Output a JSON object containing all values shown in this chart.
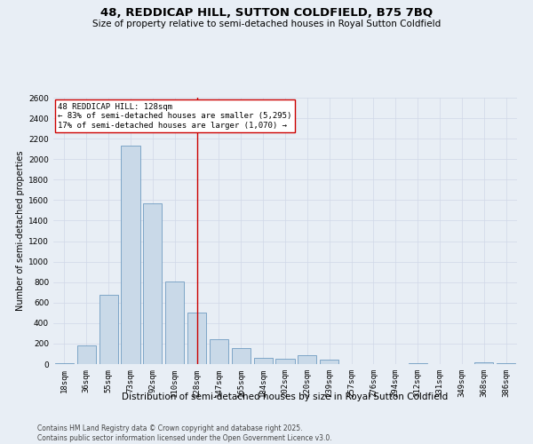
{
  "title": "48, REDDICAP HILL, SUTTON COLDFIELD, B75 7BQ",
  "subtitle": "Size of property relative to semi-detached houses in Royal Sutton Coldfield",
  "xlabel": "Distribution of semi-detached houses by size in Royal Sutton Coldfield",
  "ylabel": "Number of semi-detached properties",
  "categories": [
    "18sqm",
    "36sqm",
    "55sqm",
    "73sqm",
    "92sqm",
    "110sqm",
    "128sqm",
    "147sqm",
    "165sqm",
    "184sqm",
    "202sqm",
    "220sqm",
    "239sqm",
    "257sqm",
    "276sqm",
    "294sqm",
    "312sqm",
    "331sqm",
    "349sqm",
    "368sqm",
    "386sqm"
  ],
  "values": [
    5,
    185,
    675,
    2130,
    1565,
    810,
    500,
    240,
    160,
    65,
    50,
    90,
    40,
    0,
    0,
    0,
    5,
    0,
    0,
    20,
    5
  ],
  "bar_color": "#c9d9e8",
  "bar_edge_color": "#5b8db8",
  "vline_color": "#cc0000",
  "annotation_box_color": "#ffffff",
  "annotation_box_edge": "#cc0000",
  "pct_smaller": 83,
  "n_smaller": 5295,
  "pct_larger": 17,
  "n_larger": 1070,
  "grid_color": "#d0d8e8",
  "background_color": "#e8eef5",
  "ylim": [
    0,
    2600
  ],
  "yticks": [
    0,
    200,
    400,
    600,
    800,
    1000,
    1200,
    1400,
    1600,
    1800,
    2000,
    2200,
    2400,
    2600
  ],
  "footnote": "Contains HM Land Registry data © Crown copyright and database right 2025.\nContains public sector information licensed under the Open Government Licence v3.0.",
  "title_fontsize": 9.5,
  "subtitle_fontsize": 7.5,
  "xlabel_fontsize": 7.5,
  "ylabel_fontsize": 7,
  "tick_fontsize": 6.5,
  "annot_fontsize": 6.5,
  "footnote_fontsize": 5.5
}
